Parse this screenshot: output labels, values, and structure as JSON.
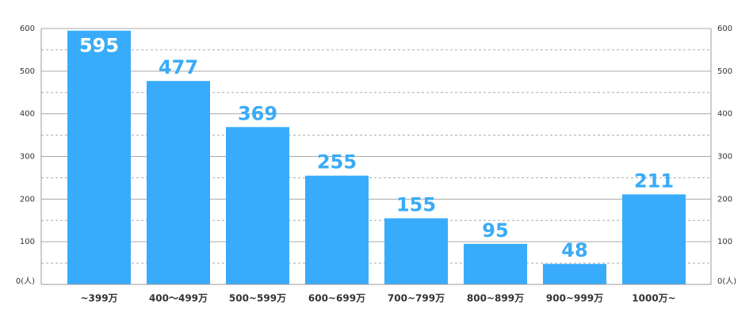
{
  "chart_data": {
    "type": "bar",
    "categories": [
      "~399万",
      "400～499万",
      "500~599万",
      "600~699万",
      "700~799万",
      "800~899万",
      "900~999万",
      "1000万~"
    ],
    "values": [
      595,
      477,
      369,
      255,
      155,
      95,
      48,
      211
    ],
    "color": "#38acfb",
    "ylim": [
      0,
      600
    ],
    "yticks": [
      {
        "value": 0,
        "label": "0(人)"
      },
      100,
      200,
      300,
      400,
      500,
      600
    ],
    "minor_gridlines": [
      50,
      150,
      250,
      350,
      450,
      550
    ],
    "grid": true
  }
}
